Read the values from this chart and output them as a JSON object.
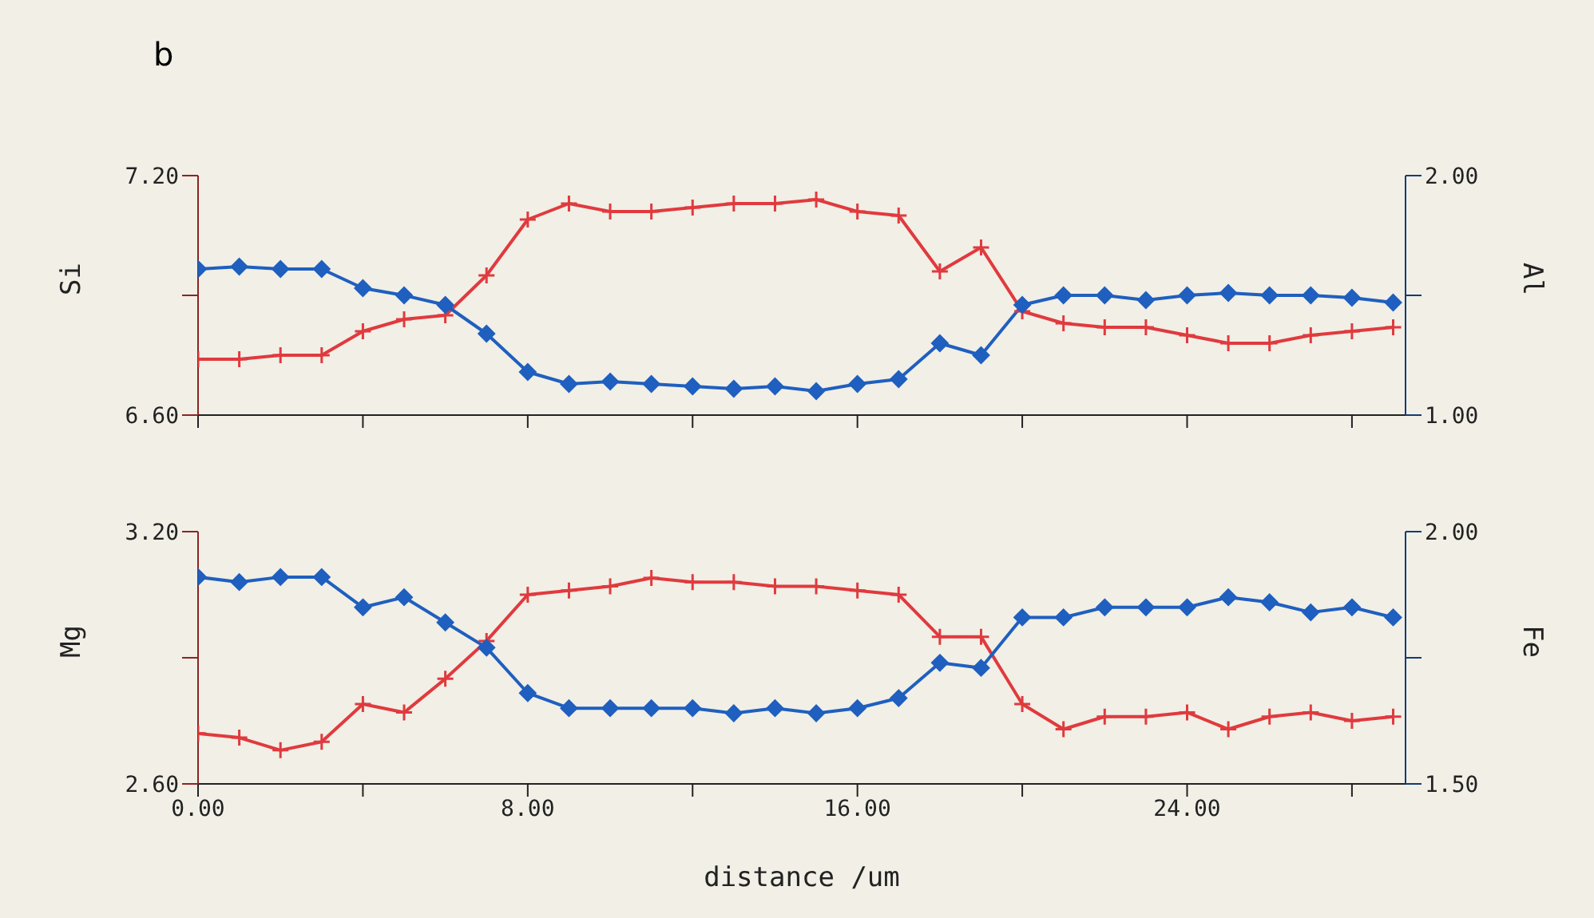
{
  "chart_data": [
    {
      "type": "line",
      "title": "b",
      "ylabel": "Si",
      "y2label": "Al",
      "tick_labels": "y",
      "x": [
        0,
        1,
        2,
        3,
        4,
        5,
        6,
        7,
        8,
        9,
        10,
        11,
        12,
        13,
        14,
        15,
        16,
        17,
        18,
        19,
        20,
        21,
        22,
        23,
        24,
        25,
        26,
        27,
        28,
        29
      ],
      "xlim": [
        0,
        29.3
      ],
      "xticks": [
        {
          "value": 0,
          "label": null
        },
        {
          "value": 4,
          "label": null
        },
        {
          "value": 8,
          "label": null
        },
        {
          "value": 12,
          "label": null
        },
        {
          "value": 16,
          "label": null
        },
        {
          "value": 20,
          "label": null
        },
        {
          "value": 24,
          "label": null
        },
        {
          "value": 28,
          "label": null
        }
      ],
      "ylim": [
        6.6,
        7.2
      ],
      "yticks": [
        {
          "value": 6.6,
          "label": "6.60"
        },
        {
          "value": 6.9,
          "label": null
        },
        {
          "value": 7.2,
          "label": "7.20"
        }
      ],
      "y2lim": [
        1.0,
        2.0
      ],
      "y2ticks": [
        {
          "value": 1.0,
          "label": "1.00"
        },
        {
          "value": 1.5,
          "label": null
        },
        {
          "value": 2.0,
          "label": "2.00"
        }
      ],
      "series": [
        {
          "color": "#e03a3e",
          "marker": "cross",
          "axis": "y",
          "values": [
            6.74,
            6.74,
            6.75,
            6.75,
            6.81,
            6.84,
            6.85,
            6.95,
            7.09,
            7.13,
            7.11,
            7.11,
            7.12,
            7.13,
            7.13,
            7.14,
            7.11,
            7.1,
            6.96,
            7.02,
            6.86,
            6.83,
            6.82,
            6.82,
            6.8,
            6.78,
            6.78,
            6.8,
            6.81,
            6.82
          ]
        },
        {
          "color": "#1f5fbf",
          "marker": "diamond",
          "axis": "y2",
          "values": [
            1.61,
            1.62,
            1.61,
            1.61,
            1.53,
            1.5,
            1.46,
            1.34,
            1.18,
            1.13,
            1.14,
            1.13,
            1.12,
            1.11,
            1.12,
            1.1,
            1.13,
            1.15,
            1.3,
            1.25,
            1.46,
            1.5,
            1.5,
            1.48,
            1.5,
            1.51,
            1.5,
            1.5,
            1.49,
            1.47
          ]
        }
      ]
    },
    {
      "type": "line",
      "xlabel": "distance /um",
      "ylabel": "Mg",
      "y2label": "Fe",
      "x": [
        0,
        1,
        2,
        3,
        4,
        5,
        6,
        7,
        8,
        9,
        10,
        11,
        12,
        13,
        14,
        15,
        16,
        17,
        18,
        19,
        20,
        21,
        22,
        23,
        24,
        25,
        26,
        27,
        28,
        29
      ],
      "xlim": [
        0,
        29.3
      ],
      "xticks": [
        {
          "value": 0,
          "label": "0.00"
        },
        {
          "value": 4,
          "label": null
        },
        {
          "value": 8,
          "label": "8.00"
        },
        {
          "value": 12,
          "label": null
        },
        {
          "value": 16,
          "label": "16.00"
        },
        {
          "value": 20,
          "label": null
        },
        {
          "value": 24,
          "label": "24.00"
        },
        {
          "value": 28,
          "label": null
        }
      ],
      "ylim": [
        2.6,
        3.2
      ],
      "yticks": [
        {
          "value": 2.6,
          "label": "2.60"
        },
        {
          "value": 2.9,
          "label": null
        },
        {
          "value": 3.2,
          "label": "3.20"
        }
      ],
      "y2lim": [
        1.5,
        2.0
      ],
      "y2ticks": [
        {
          "value": 1.5,
          "label": "1.50"
        },
        {
          "value": 1.75,
          "label": null
        },
        {
          "value": 2.0,
          "label": "2.00"
        }
      ],
      "series": [
        {
          "color": "#e03a3e",
          "marker": "cross",
          "axis": "y",
          "values": [
            2.72,
            2.71,
            2.68,
            2.7,
            2.79,
            2.77,
            2.85,
            2.94,
            3.05,
            3.06,
            3.07,
            3.09,
            3.08,
            3.08,
            3.07,
            3.07,
            3.06,
            3.05,
            2.95,
            2.95,
            2.79,
            2.73,
            2.76,
            2.76,
            2.77,
            2.73,
            2.76,
            2.77,
            2.75,
            2.76
          ]
        },
        {
          "color": "#1f5fbf",
          "marker": "diamond",
          "axis": "y2",
          "values": [
            1.91,
            1.9,
            1.91,
            1.91,
            1.85,
            1.87,
            1.82,
            1.77,
            1.68,
            1.65,
            1.65,
            1.65,
            1.65,
            1.64,
            1.65,
            1.64,
            1.65,
            1.67,
            1.74,
            1.73,
            1.83,
            1.83,
            1.85,
            1.85,
            1.85,
            1.87,
            1.86,
            1.84,
            1.85,
            1.83
          ]
        }
      ]
    }
  ]
}
